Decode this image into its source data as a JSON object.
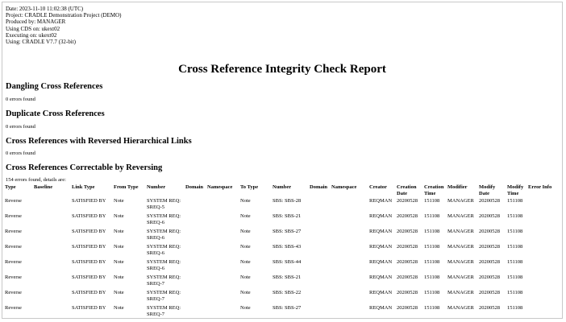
{
  "meta": {
    "date": "Date: 2023-11-10 11:02:38 (UTC)",
    "project": "Project: CRADLE Demonstration Project (DEMO)",
    "produced_by": "Produced by: MANAGER",
    "using_cds": "Using CDS on: ukext02",
    "executing_on": "Executing on: ukext02",
    "using": "Using: CRADLE V7.7 (32-bit)"
  },
  "report_title": "Cross Reference Integrity Check Report",
  "sections": [
    {
      "heading": "Dangling Cross References",
      "count": "0 errors found"
    },
    {
      "heading": "Duplicate Cross References",
      "count": "0 errors found"
    },
    {
      "heading": "Cross References with Reversed Hierarchical Links",
      "count": "0 errors found"
    },
    {
      "heading": "Cross References Correctable by Reversing",
      "count": "154 errors found, details are:"
    }
  ],
  "table": {
    "headers": [
      "Type",
      "Baseline",
      "Link Type",
      "From Type",
      "Number",
      "Domain",
      "Namespace",
      "To Type",
      "Number",
      "Domain",
      "Namespace",
      "Creator",
      "Creation Date",
      "Creation Time",
      "Modifier",
      "Modify Date",
      "Modify Time",
      "Error Info"
    ],
    "rows": [
      {
        "type": "Reverse",
        "baseline": "",
        "link_type": "SATISFIED BY",
        "from_type": "Note",
        "from_number": "SYSTEM REQ: SREQ-5",
        "from_domain": "",
        "from_ns": "",
        "to_type": "Note",
        "to_number": "SBS: SBS-28",
        "to_domain": "",
        "to_ns": "",
        "creator": "REQMAN",
        "creation_date": "20200528",
        "creation_time": "151108",
        "modifier": "MANAGER",
        "modify_date": "20200528",
        "modify_time": "151108",
        "error_info": ""
      },
      {
        "type": "Reverse",
        "baseline": "",
        "link_type": "SATISFIED BY",
        "from_type": "Note",
        "from_number": "SYSTEM REQ: SREQ-6",
        "from_domain": "",
        "from_ns": "",
        "to_type": "Note",
        "to_number": "SBS: SBS-21",
        "to_domain": "",
        "to_ns": "",
        "creator": "REQMAN",
        "creation_date": "20200528",
        "creation_time": "151108",
        "modifier": "MANAGER",
        "modify_date": "20200528",
        "modify_time": "151108",
        "error_info": ""
      },
      {
        "type": "Reverse",
        "baseline": "",
        "link_type": "SATISFIED BY",
        "from_type": "Note",
        "from_number": "SYSTEM REQ: SREQ-6",
        "from_domain": "",
        "from_ns": "",
        "to_type": "Note",
        "to_number": "SBS: SBS-27",
        "to_domain": "",
        "to_ns": "",
        "creator": "REQMAN",
        "creation_date": "20200528",
        "creation_time": "151108",
        "modifier": "MANAGER",
        "modify_date": "20200528",
        "modify_time": "151108",
        "error_info": ""
      },
      {
        "type": "Reverse",
        "baseline": "",
        "link_type": "SATISFIED BY",
        "from_type": "Note",
        "from_number": "SYSTEM REQ: SREQ-6",
        "from_domain": "",
        "from_ns": "",
        "to_type": "Note",
        "to_number": "SBS: SBS-43",
        "to_domain": "",
        "to_ns": "",
        "creator": "REQMAN",
        "creation_date": "20200528",
        "creation_time": "151108",
        "modifier": "MANAGER",
        "modify_date": "20200528",
        "modify_time": "151108",
        "error_info": ""
      },
      {
        "type": "Reverse",
        "baseline": "",
        "link_type": "SATISFIED BY",
        "from_type": "Note",
        "from_number": "SYSTEM REQ: SREQ-6",
        "from_domain": "",
        "from_ns": "",
        "to_type": "Note",
        "to_number": "SBS: SBS-44",
        "to_domain": "",
        "to_ns": "",
        "creator": "REQMAN",
        "creation_date": "20200528",
        "creation_time": "151108",
        "modifier": "MANAGER",
        "modify_date": "20200528",
        "modify_time": "151108",
        "error_info": ""
      },
      {
        "type": "Reverse",
        "baseline": "",
        "link_type": "SATISFIED BY",
        "from_type": "Note",
        "from_number": "SYSTEM REQ: SREQ-7",
        "from_domain": "",
        "from_ns": "",
        "to_type": "Note",
        "to_number": "SBS: SBS-21",
        "to_domain": "",
        "to_ns": "",
        "creator": "REQMAN",
        "creation_date": "20200528",
        "creation_time": "151108",
        "modifier": "MANAGER",
        "modify_date": "20200528",
        "modify_time": "151108",
        "error_info": ""
      },
      {
        "type": "Reverse",
        "baseline": "",
        "link_type": "SATISFIED BY",
        "from_type": "Note",
        "from_number": "SYSTEM REQ: SREQ-7",
        "from_domain": "",
        "from_ns": "",
        "to_type": "Note",
        "to_number": "SBS: SBS-22",
        "to_domain": "",
        "to_ns": "",
        "creator": "REQMAN",
        "creation_date": "20200528",
        "creation_time": "151108",
        "modifier": "MANAGER",
        "modify_date": "20200528",
        "modify_time": "151108",
        "error_info": ""
      },
      {
        "type": "Reverse",
        "baseline": "",
        "link_type": "SATISFIED BY",
        "from_type": "Note",
        "from_number": "SYSTEM REQ: SREQ-7",
        "from_domain": "",
        "from_ns": "",
        "to_type": "Note",
        "to_number": "SBS: SBS-27",
        "to_domain": "",
        "to_ns": "",
        "creator": "REQMAN",
        "creation_date": "20200528",
        "creation_time": "151108",
        "modifier": "MANAGER",
        "modify_date": "20200528",
        "modify_time": "151108",
        "error_info": ""
      }
    ]
  }
}
